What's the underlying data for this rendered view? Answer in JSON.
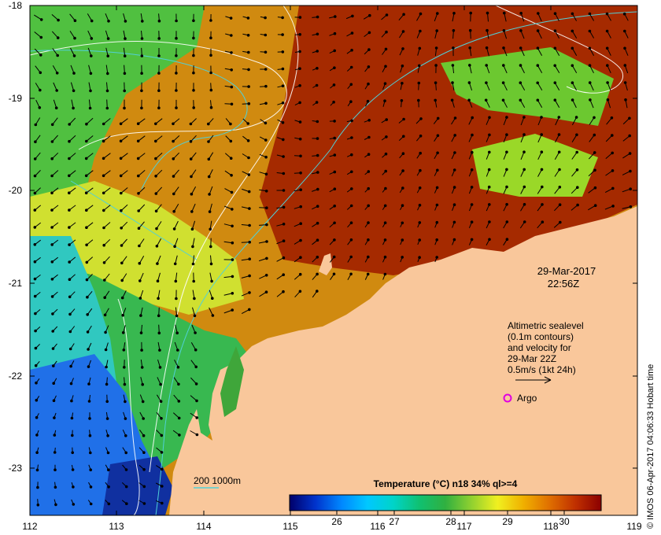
{
  "map": {
    "lon_ticks": [
      "112",
      "113",
      "114",
      "115",
      "116",
      "117",
      "118",
      "119"
    ],
    "lat_ticks": [
      "-18",
      "-19",
      "-20",
      "-21",
      "-22",
      "-23"
    ],
    "timestamp": {
      "date": "29-Mar-2017",
      "time": "22:56Z"
    },
    "altimetry_note": [
      "Altimetric sealevel",
      "(0.1m contours)",
      "and velocity for",
      "29-Mar 22Z",
      "0.5m/s (1kt 24h)"
    ],
    "argo_label": "Argo",
    "bathy_legend": {
      "label": "200  1000m"
    },
    "colorbar": {
      "title": "Temperature (°C) n18 34% ql>=4",
      "ticks": [
        "26",
        "27",
        "28",
        "29",
        "30"
      ],
      "stops": [
        "#00006a",
        "#0033cc",
        "#0088ff",
        "#00c8ff",
        "#00d4c8",
        "#10c070",
        "#30b040",
        "#90d030",
        "#f0f020",
        "#f0b000",
        "#e07000",
        "#c03000",
        "#8b0000"
      ]
    },
    "credit": "© IMOS 06-Apr-2017 04:06:33 Hobart time",
    "colors": {
      "land": "#f9c79b",
      "contour_white": "#ffffff",
      "contour_cyan": "#50d0d8",
      "argo": "#e000e0"
    }
  }
}
